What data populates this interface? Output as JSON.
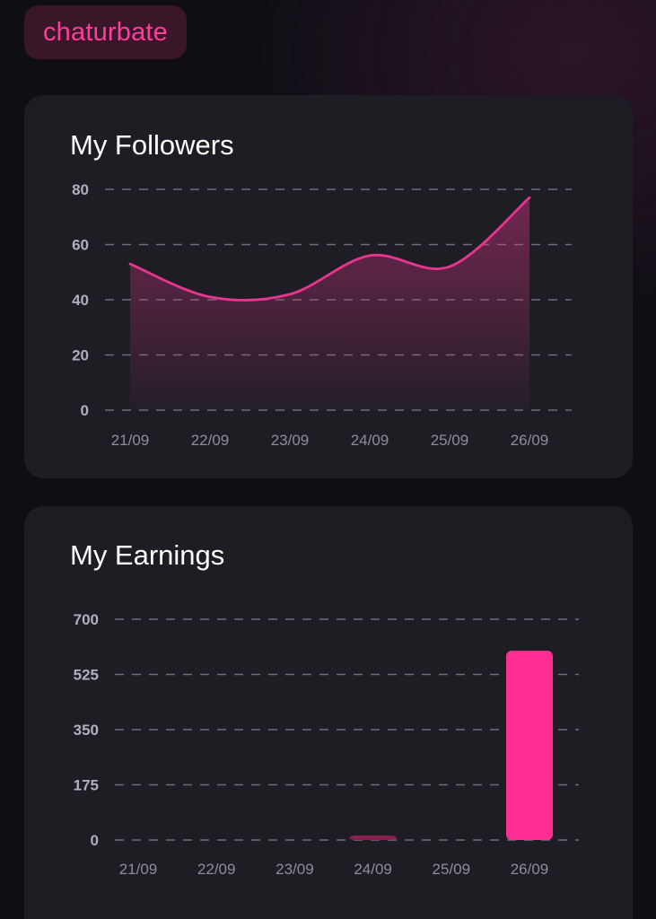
{
  "brand": {
    "label": "chaturbate",
    "color": "#ff3d9a"
  },
  "chart_data": [
    {
      "type": "area",
      "title": "My Followers",
      "categories": [
        "21/09",
        "22/09",
        "23/09",
        "24/09",
        "25/09",
        "26/09"
      ],
      "values": [
        53,
        41,
        42,
        56,
        52,
        77
      ],
      "yticks": [
        0,
        20,
        40,
        60,
        80
      ],
      "ylim": [
        0,
        80
      ],
      "grid": true,
      "color": "#e8358f"
    },
    {
      "type": "bar",
      "title": "My Earnings",
      "categories": [
        "21/09",
        "22/09",
        "23/09",
        "24/09",
        "25/09",
        "26/09"
      ],
      "values": [
        0,
        0,
        0,
        14,
        0,
        600
      ],
      "yticks": [
        0,
        175,
        350,
        525,
        700
      ],
      "ylim": [
        0,
        700
      ],
      "grid": true,
      "colors": [
        "#ff2e93",
        "#ff2e93",
        "#ff2e93",
        "#8a1f52",
        "#ff2e93",
        "#ff2e93"
      ]
    }
  ]
}
